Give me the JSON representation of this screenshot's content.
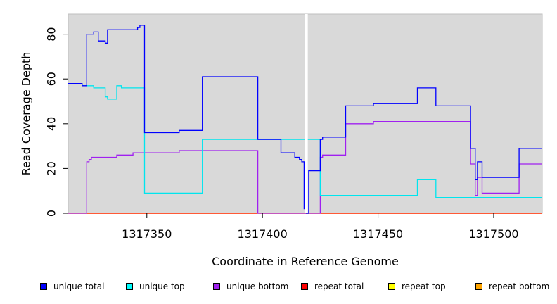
{
  "chart_data": {
    "type": "line",
    "xlabel": "Coordinate in Reference Genome",
    "ylabel": "Read Coverage Depth",
    "xlim": [
      1317316,
      1317521
    ],
    "ylim": [
      0,
      89
    ],
    "x_ticks": [
      1317350,
      1317400,
      1317450,
      1317500
    ],
    "x_tick_labels": [
      "1317350",
      "1317400",
      "1317450",
      "1317500"
    ],
    "y_ticks": [
      0,
      20,
      40,
      60,
      80
    ],
    "y_tick_labels": [
      "0",
      "20",
      "40",
      "60",
      "80"
    ],
    "gap_marker_x": 1317419,
    "grid": false,
    "legend_position": "bottom",
    "series": [
      {
        "name": "unique total",
        "color": "#0000ff",
        "x": [
          1317316,
          1317322,
          1317324,
          1317327,
          1317329,
          1317332,
          1317333,
          1317337,
          1317346,
          1317347,
          1317348,
          1317349,
          1317364,
          1317374,
          1317398,
          1317408,
          1317414,
          1317416,
          1317417,
          1317418,
          1317419,
          1317420,
          1317425,
          1317426,
          1317436,
          1317448,
          1317467,
          1317475,
          1317490,
          1317492,
          1317493,
          1317495,
          1317511,
          1317521
        ],
        "values": [
          58,
          57,
          80,
          81,
          77,
          76,
          82,
          82,
          83,
          84,
          84,
          36,
          37,
          61,
          33,
          27,
          25,
          24,
          23,
          2,
          0,
          19,
          33,
          34,
          48,
          49,
          56,
          48,
          29,
          15,
          23,
          16,
          29,
          29
        ]
      },
      {
        "name": "unique top",
        "color": "#00e5ee",
        "x": [
          1317316,
          1317322,
          1317324,
          1317327,
          1317329,
          1317332,
          1317333,
          1317337,
          1317339,
          1317349,
          1317374,
          1317398,
          1317425,
          1317467,
          1317475,
          1317490,
          1317492,
          1317493,
          1317511,
          1317521
        ],
        "values": [
          58,
          57,
          57,
          56,
          56,
          52,
          51,
          57,
          56,
          9,
          33,
          33,
          8,
          15,
          7,
          7,
          7,
          7,
          7,
          7
        ]
      },
      {
        "name": "unique bottom",
        "color": "#a020f0",
        "x": [
          1317316,
          1317324,
          1317325,
          1317326,
          1317328,
          1317337,
          1317344,
          1317349,
          1317364,
          1317374,
          1317398,
          1317418,
          1317425,
          1317426,
          1317436,
          1317448,
          1317467,
          1317475,
          1317490,
          1317492,
          1317493,
          1317495,
          1317511,
          1317521
        ],
        "values": [
          0,
          23,
          24,
          25,
          25,
          26,
          27,
          27,
          28,
          28,
          0,
          0,
          25,
          26,
          40,
          41,
          41,
          41,
          22,
          8,
          16,
          9,
          22,
          22
        ]
      },
      {
        "name": "repeat total",
        "color": "#ff0000",
        "x": [
          1317316,
          1317521
        ],
        "values": [
          0,
          0
        ]
      },
      {
        "name": "repeat top",
        "color": "#ffff00",
        "x": [
          1317316,
          1317521
        ],
        "values": [
          0,
          0
        ]
      },
      {
        "name": "repeat bottom",
        "color": "#ffa500",
        "x": [
          1317316,
          1317521
        ],
        "values": [
          0,
          0
        ]
      }
    ],
    "plot_background": "#d9d9d9",
    "gap_marker_color": "#ffffff"
  },
  "legend": {
    "items": [
      {
        "label": "unique total",
        "color": "#0000ff"
      },
      {
        "label": "unique top",
        "color": "#00ffff"
      },
      {
        "label": "unique bottom",
        "color": "#a020f0"
      },
      {
        "label": "repeat total",
        "color": "#ff0000"
      },
      {
        "label": "repeat top",
        "color": "#ffff00"
      },
      {
        "label": "repeat bottom",
        "color": "#ffa500"
      }
    ]
  }
}
